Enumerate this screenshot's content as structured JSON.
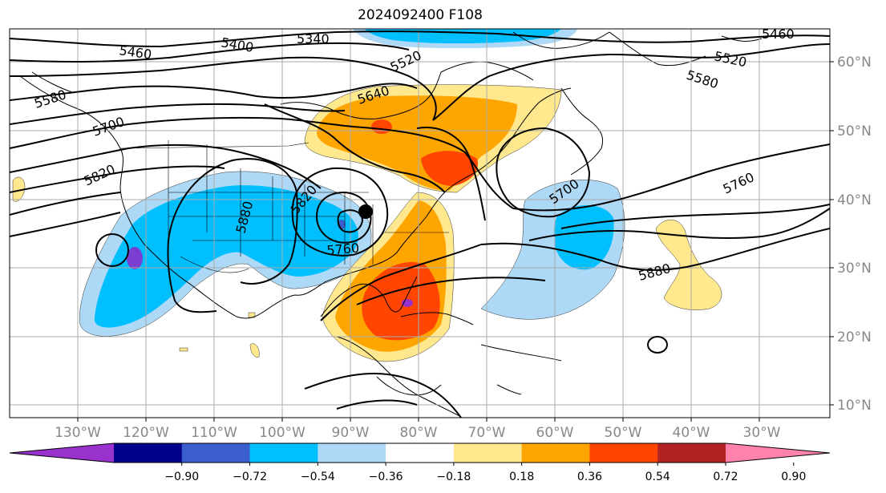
{
  "title": "2024092400 F108",
  "map": {
    "longitude_labels": [
      "130°W",
      "120°W",
      "110°W",
      "100°W",
      "90°W",
      "80°W",
      "70°W",
      "60°W",
      "50°W",
      "40°W",
      "30°W"
    ],
    "latitude_labels": [
      "60°N",
      "50°N",
      "40°N",
      "30°N",
      "20°N",
      "10°N"
    ],
    "contour_labels": [
      "5460",
      "5400",
      "5340",
      "5520",
      "5640",
      "5580",
      "5700",
      "5820",
      "5880",
      "5760",
      "5820",
      "5760",
      "5880",
      "5520",
      "5580",
      "5460",
      "5700",
      "5760",
      "5880"
    ],
    "marker": "storm-center-dot"
  },
  "colorbar": {
    "colors": [
      "#9932cc",
      "#00008b",
      "#3a5fcd",
      "#00bfff",
      "#add8f6",
      "#ffffff",
      "#ffe88e",
      "#ffa500",
      "#ff4500",
      "#b22222",
      "#ff82ab"
    ],
    "tick_labels": [
      "−0.90",
      "−0.72",
      "−0.54",
      "−0.36",
      "−0.18",
      "0.18",
      "0.36",
      "0.54",
      "0.72",
      "0.90"
    ]
  }
}
